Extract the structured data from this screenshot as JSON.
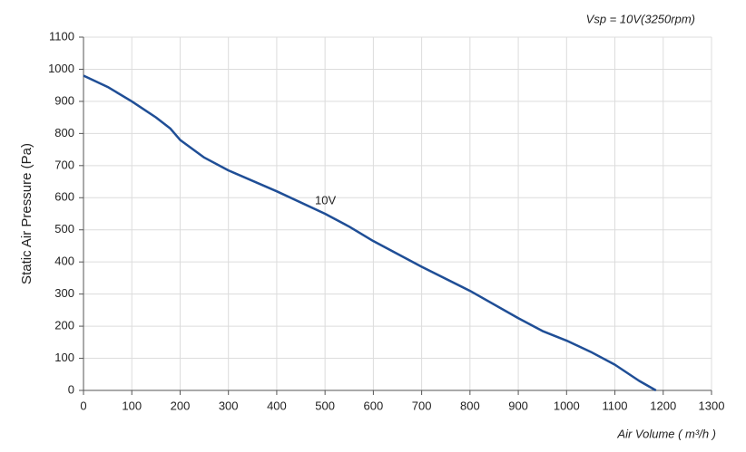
{
  "chart_data": {
    "type": "line",
    "title": "Vsp = 10V(3250rpm)",
    "x_label": "Air Volume ( m³/h )",
    "y_label": "Static Air Pressure  (Pa)",
    "annotation": "10V",
    "x": [
      0,
      50,
      100,
      150,
      180,
      200,
      250,
      300,
      400,
      500,
      550,
      600,
      700,
      800,
      900,
      950,
      1000,
      1050,
      1100,
      1150,
      1185
    ],
    "series": [
      {
        "name": "10V",
        "color": "#1f4e96",
        "values": [
          980,
          945,
          900,
          850,
          815,
          780,
          725,
          685,
          620,
          550,
          510,
          465,
          385,
          310,
          225,
          185,
          155,
          120,
          80,
          30,
          0
        ]
      }
    ],
    "xlim": [
      0,
      1300
    ],
    "xticks": [
      0,
      100,
      200,
      300,
      400,
      500,
      600,
      700,
      800,
      900,
      1000,
      1100,
      1200,
      1300
    ],
    "ylim": [
      0,
      1100
    ],
    "yticks": [
      0,
      100,
      200,
      300,
      400,
      500,
      600,
      700,
      800,
      900,
      1000,
      1100
    ],
    "grid": true
  }
}
